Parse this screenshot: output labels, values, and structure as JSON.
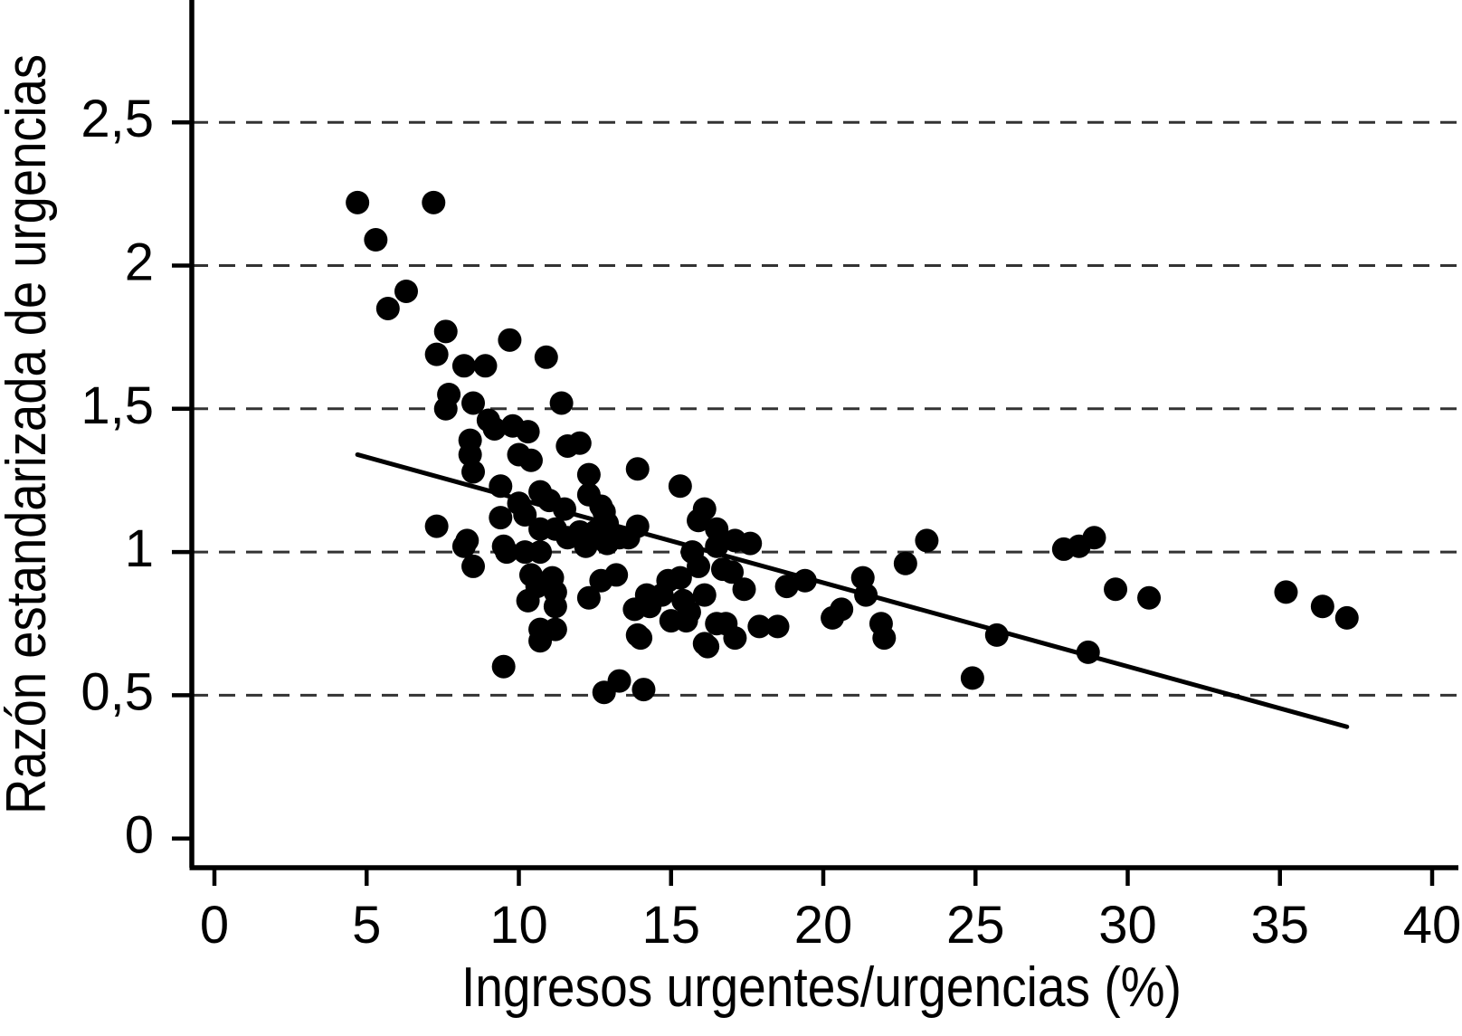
{
  "chart_data": {
    "type": "scatter",
    "title": "",
    "xlabel": "Ingresos urgentes/urgencias (%)",
    "ylabel": "Razón estandarizada de urgencias",
    "xlim": [
      0,
      40.9
    ],
    "ylim": [
      0,
      2.93
    ],
    "x_ticks": [
      {
        "v": 0,
        "label": "0"
      },
      {
        "v": 5,
        "label": "5"
      },
      {
        "v": 10,
        "label": "10"
      },
      {
        "v": 15,
        "label": "15"
      },
      {
        "v": 20,
        "label": "20"
      },
      {
        "v": 25,
        "label": "25"
      },
      {
        "v": 30,
        "label": "30"
      },
      {
        "v": 35,
        "label": "35"
      },
      {
        "v": 40,
        "label": "40"
      }
    ],
    "y_ticks": [
      {
        "v": 0,
        "label": "0"
      },
      {
        "v": 0.5,
        "label": "0,5"
      },
      {
        "v": 1,
        "label": "1"
      },
      {
        "v": 1.5,
        "label": "1,5"
      },
      {
        "v": 2,
        "label": "2"
      },
      {
        "v": 2.5,
        "label": "2,5"
      }
    ],
    "gridlines_y": [
      0.5,
      1,
      1.5,
      2,
      2.5
    ],
    "grid_style": "dashed",
    "legend": "none",
    "point_color": "#000000",
    "line_color": "#000000",
    "trend_line": {
      "x1": 4.7,
      "y1": 1.34,
      "x2": 37.2,
      "y2": 0.39
    },
    "points": [
      [
        4.7,
        2.22
      ],
      [
        7.2,
        2.22
      ],
      [
        5.3,
        2.09
      ],
      [
        6.3,
        1.91
      ],
      [
        5.7,
        1.85
      ],
      [
        7.6,
        1.77
      ],
      [
        7.3,
        1.69
      ],
      [
        8.2,
        1.65
      ],
      [
        8.9,
        1.65
      ],
      [
        9.7,
        1.74
      ],
      [
        10.9,
        1.68
      ],
      [
        7.7,
        1.55
      ],
      [
        7.6,
        1.5
      ],
      [
        8.5,
        1.52
      ],
      [
        9.0,
        1.46
      ],
      [
        11.4,
        1.52
      ],
      [
        9.2,
        1.43
      ],
      [
        9.8,
        1.44
      ],
      [
        10.3,
        1.42
      ],
      [
        8.4,
        1.39
      ],
      [
        8.4,
        1.34
      ],
      [
        8.5,
        1.28
      ],
      [
        11.6,
        1.37
      ],
      [
        12.0,
        1.38
      ],
      [
        10.0,
        1.34
      ],
      [
        10.4,
        1.32
      ],
      [
        12.3,
        1.27
      ],
      [
        9.4,
        1.23
      ],
      [
        10.7,
        1.21
      ],
      [
        12.3,
        1.2
      ],
      [
        12.7,
        1.16
      ],
      [
        13.9,
        1.29
      ],
      [
        15.3,
        1.23
      ],
      [
        7.3,
        1.09
      ],
      [
        9.4,
        1.12
      ],
      [
        10.0,
        1.17
      ],
      [
        10.2,
        1.13
      ],
      [
        11.0,
        1.18
      ],
      [
        11.5,
        1.15
      ],
      [
        12.8,
        1.14
      ],
      [
        12.9,
        1.1
      ],
      [
        13.9,
        1.09
      ],
      [
        13.6,
        1.05
      ],
      [
        16.1,
        1.15
      ],
      [
        15.9,
        1.11
      ],
      [
        16.5,
        1.08
      ],
      [
        16.5,
        1.02
      ],
      [
        15.7,
        1.0
      ],
      [
        15.9,
        0.95
      ],
      [
        17.1,
        1.04
      ],
      [
        17.6,
        1.03
      ],
      [
        10.7,
        1.08
      ],
      [
        11.2,
        1.08
      ],
      [
        11.6,
        1.05
      ],
      [
        12.0,
        1.07
      ],
      [
        12.5,
        1.07
      ],
      [
        8.3,
        1.04
      ],
      [
        8.2,
        1.02
      ],
      [
        9.5,
        1.02
      ],
      [
        9.6,
        1.0
      ],
      [
        10.2,
        1.0
      ],
      [
        10.7,
        1.0
      ],
      [
        12.2,
        1.02
      ],
      [
        12.9,
        1.03
      ],
      [
        13.3,
        1.05
      ],
      [
        8.5,
        0.95
      ],
      [
        10.4,
        0.92
      ],
      [
        11.1,
        0.91
      ],
      [
        14.9,
        0.9
      ],
      [
        15.3,
        0.91
      ],
      [
        16.7,
        0.94
      ],
      [
        17.0,
        0.93
      ],
      [
        18.8,
        0.88
      ],
      [
        19.4,
        0.9
      ],
      [
        21.3,
        0.91
      ],
      [
        22.7,
        0.96
      ],
      [
        23.4,
        1.04
      ],
      [
        27.9,
        1.01
      ],
      [
        28.4,
        1.02
      ],
      [
        28.9,
        1.05
      ],
      [
        10.3,
        0.83
      ],
      [
        11.2,
        0.81
      ],
      [
        10.6,
        0.88
      ],
      [
        11.2,
        0.86
      ],
      [
        14.2,
        0.85
      ],
      [
        14.7,
        0.85
      ],
      [
        15.4,
        0.83
      ],
      [
        15.6,
        0.79
      ],
      [
        16.1,
        0.85
      ],
      [
        12.3,
        0.84
      ],
      [
        12.7,
        0.9
      ],
      [
        13.2,
        0.92
      ],
      [
        13.8,
        0.8
      ],
      [
        14.3,
        0.81
      ],
      [
        15.0,
        0.76
      ],
      [
        15.5,
        0.76
      ],
      [
        20.6,
        0.8
      ],
      [
        20.3,
        0.77
      ],
      [
        21.4,
        0.85
      ],
      [
        29.6,
        0.87
      ],
      [
        30.7,
        0.84
      ],
      [
        35.2,
        0.86
      ],
      [
        36.4,
        0.81
      ],
      [
        37.2,
        0.77
      ],
      [
        10.7,
        0.73
      ],
      [
        11.2,
        0.73
      ],
      [
        10.7,
        0.69
      ],
      [
        13.9,
        0.71
      ],
      [
        16.5,
        0.75
      ],
      [
        16.1,
        0.68
      ],
      [
        17.1,
        0.7
      ],
      [
        14.0,
        0.7
      ],
      [
        16.2,
        0.67
      ],
      [
        21.9,
        0.75
      ],
      [
        22.0,
        0.7
      ],
      [
        25.7,
        0.71
      ],
      [
        28.7,
        0.65
      ],
      [
        16.8,
        0.75
      ],
      [
        17.9,
        0.74
      ],
      [
        18.5,
        0.74
      ],
      [
        17.4,
        0.87
      ],
      [
        9.5,
        0.6
      ],
      [
        12.8,
        0.51
      ],
      [
        13.3,
        0.55
      ],
      [
        14.1,
        0.52
      ],
      [
        24.9,
        0.56
      ]
    ]
  }
}
